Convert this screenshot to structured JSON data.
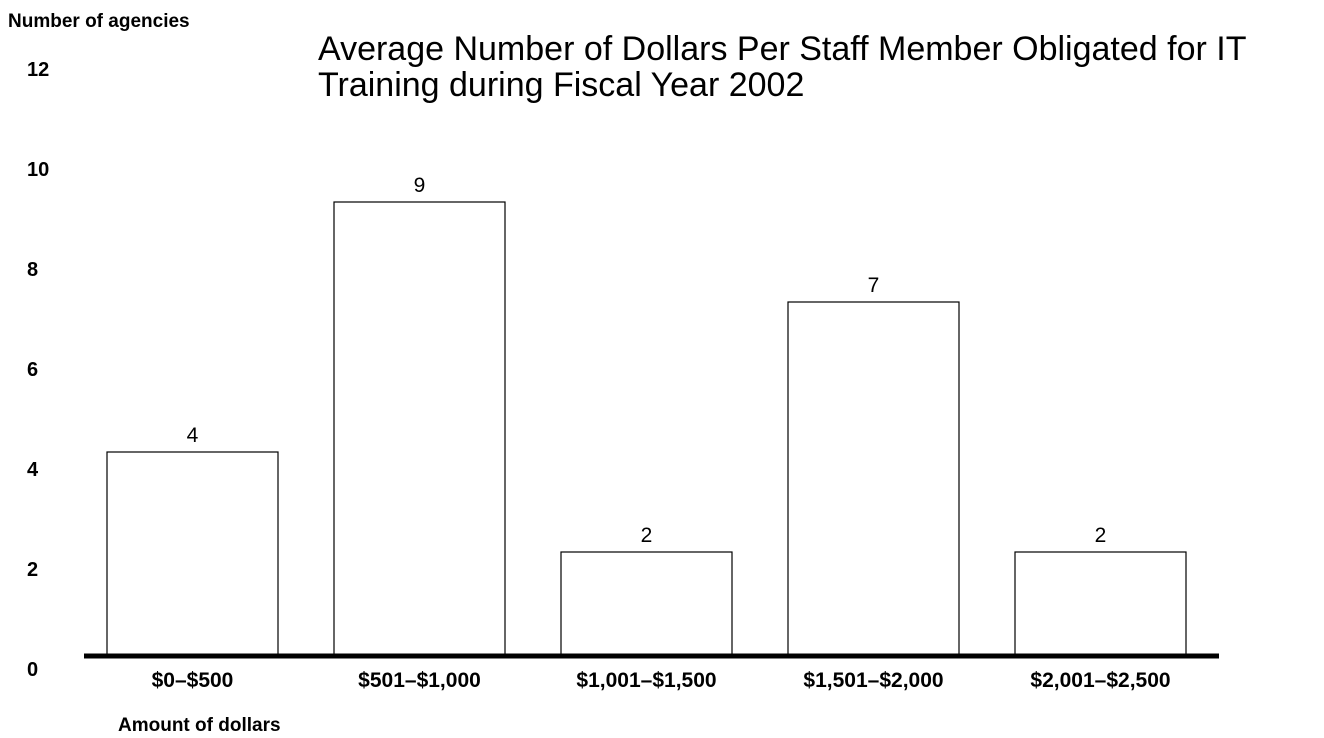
{
  "chart_data": {
    "type": "bar",
    "title": "Average Number of Dollars Per Staff Member Obligated for IT Training during Fiscal Year 2002",
    "title_lines": [
      "Average Number of Dollars Per Staff Member Obligated for IT",
      "Training during Fiscal Year 2002"
    ],
    "ylabel": "Number of agencies",
    "xlabel": "Amount of dollars",
    "categories": [
      "$0–$500",
      "$501–$1,000",
      "$1,001–$1,500",
      "$1,501–$2,000",
      "$2,001–$2,500"
    ],
    "values": [
      4,
      9,
      2,
      7,
      2
    ],
    "data_labels": [
      "4",
      "9",
      "2",
      "7",
      "2"
    ],
    "yticks": [
      "0",
      "2",
      "4",
      "6",
      "8",
      "10",
      "12"
    ],
    "ylim": [
      0,
      12
    ],
    "grid": false,
    "colors": {
      "bar_fill": "#ffffff",
      "bar_stroke": "#000000",
      "axis": "#000000"
    }
  }
}
